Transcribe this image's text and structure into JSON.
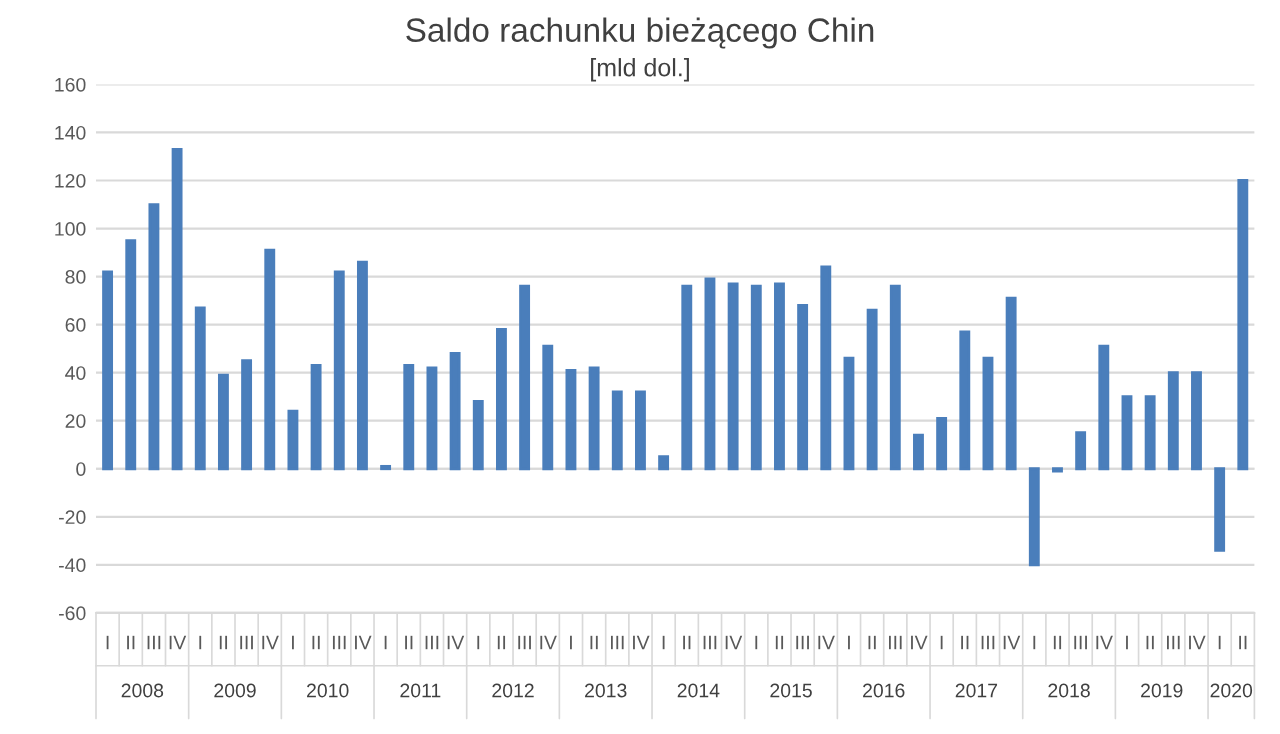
{
  "chart_data": {
    "type": "bar",
    "title": "Saldo rachunku bieżącego Chin",
    "subtitle": "[mld dol.]",
    "categories": [
      "I",
      "II",
      "III",
      "IV",
      "I",
      "II",
      "III",
      "IV",
      "I",
      "II",
      "III",
      "IV",
      "I",
      "II",
      "III",
      "IV",
      "I",
      "II",
      "III",
      "IV",
      "I",
      "II",
      "III",
      "IV",
      "I",
      "II",
      "III",
      "IV",
      "I",
      "II",
      "III",
      "IV",
      "I",
      "II",
      "III",
      "IV",
      "I",
      "II",
      "III",
      "IV",
      "I",
      "II",
      "III",
      "IV",
      "I",
      "II",
      "III",
      "IV",
      "I",
      "II"
    ],
    "series": [
      {
        "color": "#4a7ebb",
        "values": [
          82,
          95,
          110,
          133,
          67,
          39,
          45,
          91,
          24,
          43,
          82,
          86,
          1,
          43,
          42,
          48,
          28,
          58,
          76,
          51,
          41,
          42,
          32,
          32,
          5,
          76,
          79,
          77,
          76,
          77,
          68,
          84,
          46,
          66,
          76,
          14,
          21,
          57,
          46,
          71,
          -40,
          -1,
          15,
          51,
          30,
          30,
          40,
          40,
          -34,
          120
        ]
      }
    ],
    "annotations": [
      "2008",
      "2009",
      "2010",
      "2011",
      "2012",
      "2013",
      "2014",
      "2015",
      "2016",
      "2017",
      "2018",
      "2019",
      "2020"
    ],
    "ylim": [
      -60,
      160
    ],
    "yticks": [
      -60,
      -40,
      -20,
      0,
      20,
      40,
      60,
      80,
      100,
      120,
      140,
      160
    ],
    "grid": "y",
    "legend": false
  }
}
